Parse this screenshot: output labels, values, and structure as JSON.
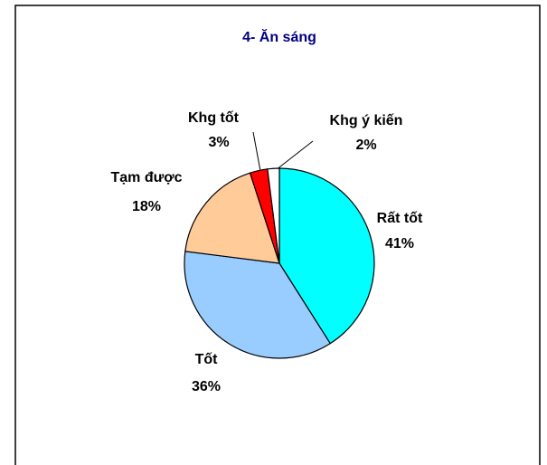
{
  "chart_data": {
    "type": "pie",
    "title": "4- Ăn sáng",
    "categories": [
      "Rất tốt",
      "Tốt",
      "Tạm được",
      "Khg tốt",
      "Khg ý kiến"
    ],
    "values": [
      41,
      36,
      18,
      3,
      2
    ],
    "value_labels": [
      "41%",
      "36%",
      "18%",
      "3%",
      "2%"
    ],
    "colors": [
      "#00ffff",
      "#99ccff",
      "#ffcc99",
      "#ff0000",
      "#ffffff"
    ]
  }
}
